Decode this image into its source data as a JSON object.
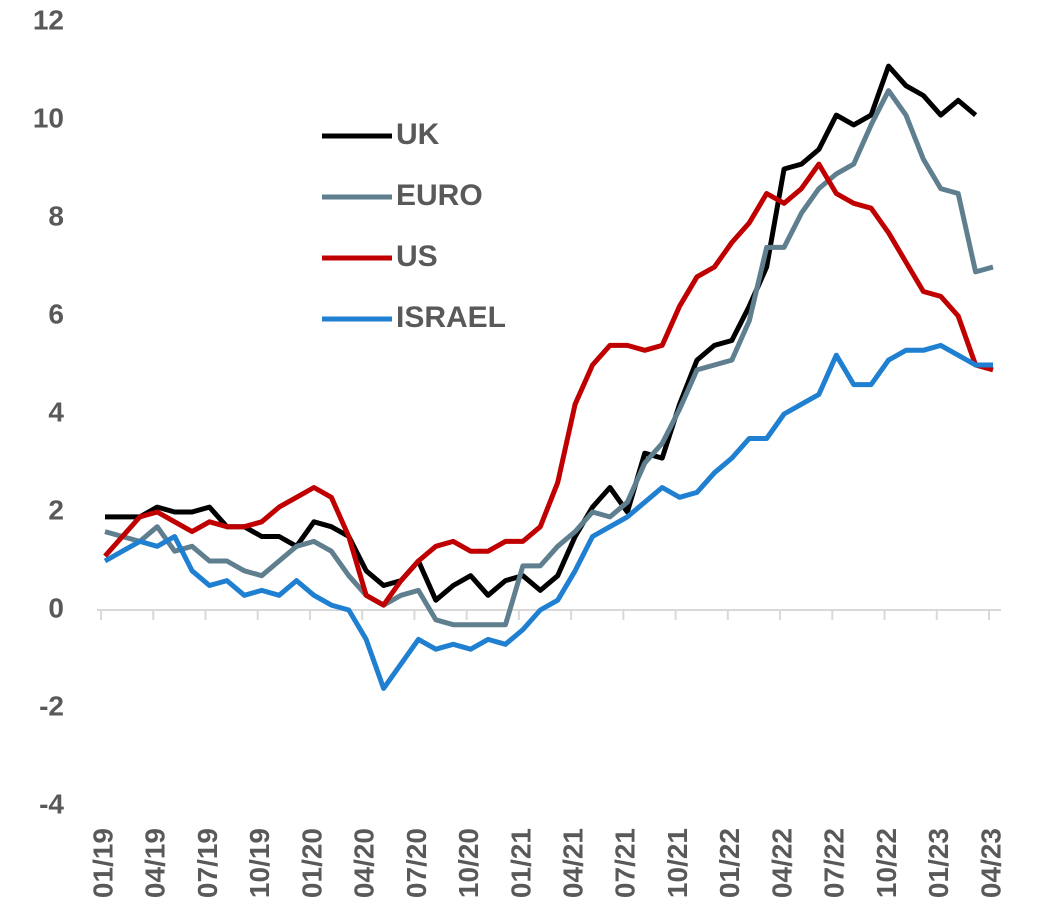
{
  "chart_data": {
    "type": "line",
    "categories": [
      "01/19",
      null,
      null,
      "04/19",
      null,
      null,
      "07/19",
      null,
      null,
      "10/19",
      null,
      null,
      "01/20",
      null,
      null,
      "04/20",
      null,
      null,
      "07/20",
      null,
      null,
      "10/20",
      null,
      null,
      "01/21",
      null,
      null,
      "04/21",
      null,
      null,
      "07/21",
      null,
      null,
      "10/21",
      null,
      null,
      "01/22",
      null,
      null,
      "04/22",
      null,
      null,
      "07/22",
      null,
      null,
      "10/22",
      null,
      null,
      "01/23",
      null,
      null,
      "04/23"
    ],
    "series": [
      {
        "name": "UK",
        "color": "#000000",
        "values": [
          1.9,
          1.9,
          1.9,
          2.1,
          2.0,
          2.0,
          2.1,
          1.7,
          1.7,
          1.5,
          1.5,
          1.3,
          1.8,
          1.7,
          1.5,
          0.8,
          0.5,
          0.6,
          1.0,
          0.2,
          0.5,
          0.7,
          0.3,
          0.6,
          0.7,
          0.4,
          0.7,
          1.5,
          2.1,
          2.5,
          2.0,
          3.2,
          3.1,
          4.2,
          5.1,
          5.4,
          5.5,
          6.2,
          7.0,
          9.0,
          9.1,
          9.4,
          10.1,
          9.9,
          10.1,
          11.1,
          10.7,
          10.5,
          10.1,
          10.4,
          10.1,
          null
        ]
      },
      {
        "name": "EURO",
        "color": "#5f7f8f",
        "values": [
          1.6,
          1.5,
          1.4,
          1.7,
          1.2,
          1.3,
          1.0,
          1.0,
          0.8,
          0.7,
          1.0,
          1.3,
          1.4,
          1.2,
          0.7,
          0.3,
          0.1,
          0.3,
          0.4,
          -0.2,
          -0.3,
          -0.3,
          -0.3,
          -0.3,
          0.9,
          0.9,
          1.3,
          1.6,
          2.0,
          1.9,
          2.2,
          3.0,
          3.4,
          4.1,
          4.9,
          5.0,
          5.1,
          5.9,
          7.4,
          7.4,
          8.1,
          8.6,
          8.9,
          9.1,
          9.9,
          10.6,
          10.1,
          9.2,
          8.6,
          8.5,
          6.9,
          7.0
        ]
      },
      {
        "name": "US",
        "color": "#c00000",
        "values": [
          1.1,
          1.5,
          1.9,
          2.0,
          1.8,
          1.6,
          1.8,
          1.7,
          1.7,
          1.8,
          2.1,
          2.3,
          2.5,
          2.3,
          1.5,
          0.3,
          0.1,
          0.6,
          1.0,
          1.3,
          1.4,
          1.2,
          1.2,
          1.4,
          1.4,
          1.7,
          2.6,
          4.2,
          5.0,
          5.4,
          5.4,
          5.3,
          5.4,
          6.2,
          6.8,
          7.0,
          7.5,
          7.9,
          8.5,
          8.3,
          8.6,
          9.1,
          8.5,
          8.3,
          8.2,
          7.7,
          7.1,
          6.5,
          6.4,
          6.0,
          5.0,
          4.9
        ]
      },
      {
        "name": "ISRAEL",
        "color": "#1f7fd0",
        "values": [
          1.0,
          1.2,
          1.4,
          1.3,
          1.5,
          0.8,
          0.5,
          0.6,
          0.3,
          0.4,
          0.3,
          0.6,
          0.3,
          0.1,
          0.0,
          -0.6,
          -1.6,
          -1.1,
          -0.6,
          -0.8,
          -0.7,
          -0.8,
          -0.6,
          -0.7,
          -0.4,
          0.0,
          0.2,
          0.8,
          1.5,
          1.7,
          1.9,
          2.2,
          2.5,
          2.3,
          2.4,
          2.8,
          3.1,
          3.5,
          3.5,
          4.0,
          4.2,
          4.4,
          5.2,
          4.6,
          4.6,
          5.1,
          5.3,
          5.3,
          5.4,
          5.2,
          5.0,
          5.0
        ]
      }
    ],
    "ylim": [
      -4,
      12
    ],
    "yticks": [
      -4,
      -2,
      0,
      2,
      4,
      6,
      8,
      10,
      12
    ]
  }
}
